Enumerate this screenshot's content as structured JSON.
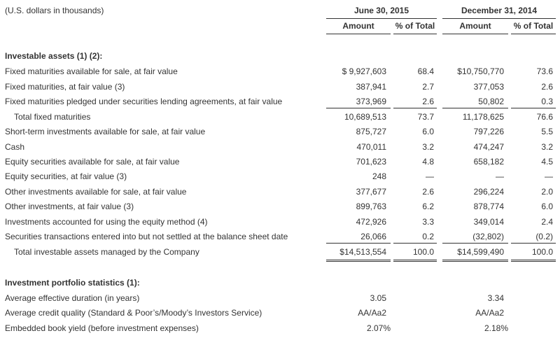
{
  "header": {
    "units_note": "(U.S. dollars in thousands)",
    "period1": "June 30, 2015",
    "period2": "December 31, 2014",
    "col_amount": "Amount",
    "col_pct": "% of Total"
  },
  "investable_assets": {
    "section_title": "Investable assets (1) (2):",
    "rows": [
      {
        "label": "Fixed maturities available for sale, at fair value",
        "amt1": "$  9,927,603",
        "pct1": "68.4",
        "amt2": "$10,750,770",
        "pct2": "73.6"
      },
      {
        "label": "Fixed maturities, at fair value (3)",
        "amt1": "387,941",
        "pct1": "2.7",
        "amt2": "377,053",
        "pct2": "2.6"
      },
      {
        "label": "Fixed maturities pledged under securities lending agreements, at fair value",
        "amt1": "373,969",
        "pct1": "2.6",
        "amt2": "50,802",
        "pct2": "0.3"
      },
      {
        "label": "Total fixed maturities",
        "amt1": "10,689,513",
        "pct1": "73.7",
        "amt2": "11,178,625",
        "pct2": "76.6"
      },
      {
        "label": "Short-term investments available for sale, at fair value",
        "amt1": "875,727",
        "pct1": "6.0",
        "amt2": "797,226",
        "pct2": "5.5"
      },
      {
        "label": "Cash",
        "amt1": "470,011",
        "pct1": "3.2",
        "amt2": "474,247",
        "pct2": "3.2"
      },
      {
        "label": "Equity securities available for sale, at fair value",
        "amt1": "701,623",
        "pct1": "4.8",
        "amt2": "658,182",
        "pct2": "4.5"
      },
      {
        "label": "Equity securities, at fair value (3)",
        "amt1": "248",
        "pct1": "—",
        "amt2": "—",
        "pct2": "—"
      },
      {
        "label": "Other investments available for sale, at fair value",
        "amt1": "377,677",
        "pct1": "2.6",
        "amt2": "296,224",
        "pct2": "2.0"
      },
      {
        "label": "Other investments, at fair value (3)",
        "amt1": "899,763",
        "pct1": "6.2",
        "amt2": "878,774",
        "pct2": "6.0"
      },
      {
        "label": "Investments accounted for using the equity method (4)",
        "amt1": "472,926",
        "pct1": "3.3",
        "amt2": "349,014",
        "pct2": "2.4"
      },
      {
        "label": "Securities transactions entered into but not settled at the balance sheet date",
        "amt1": "26,066",
        "pct1": "0.2",
        "amt2": "(32,802)",
        "pct2": "(0.2)"
      },
      {
        "label": "Total investable assets managed by the Company",
        "amt1": "$14,513,554",
        "pct1": "100.0",
        "amt2": "$14,599,490",
        "pct2": "100.0"
      }
    ]
  },
  "portfolio_stats": {
    "section_title": "Investment portfolio statistics (1):",
    "rows": [
      {
        "label": "Average effective duration (in years)",
        "val1": "3.05",
        "val2": "3.34"
      },
      {
        "label": "Average credit quality (Standard & Poor’s/Moody’s Investors Service)",
        "val1": "AA/Aa2",
        "val2": "AA/Aa2"
      },
      {
        "label": "Embedded book yield (before investment expenses)",
        "val1": "2.07%",
        "val2": "2.18%"
      }
    ]
  }
}
